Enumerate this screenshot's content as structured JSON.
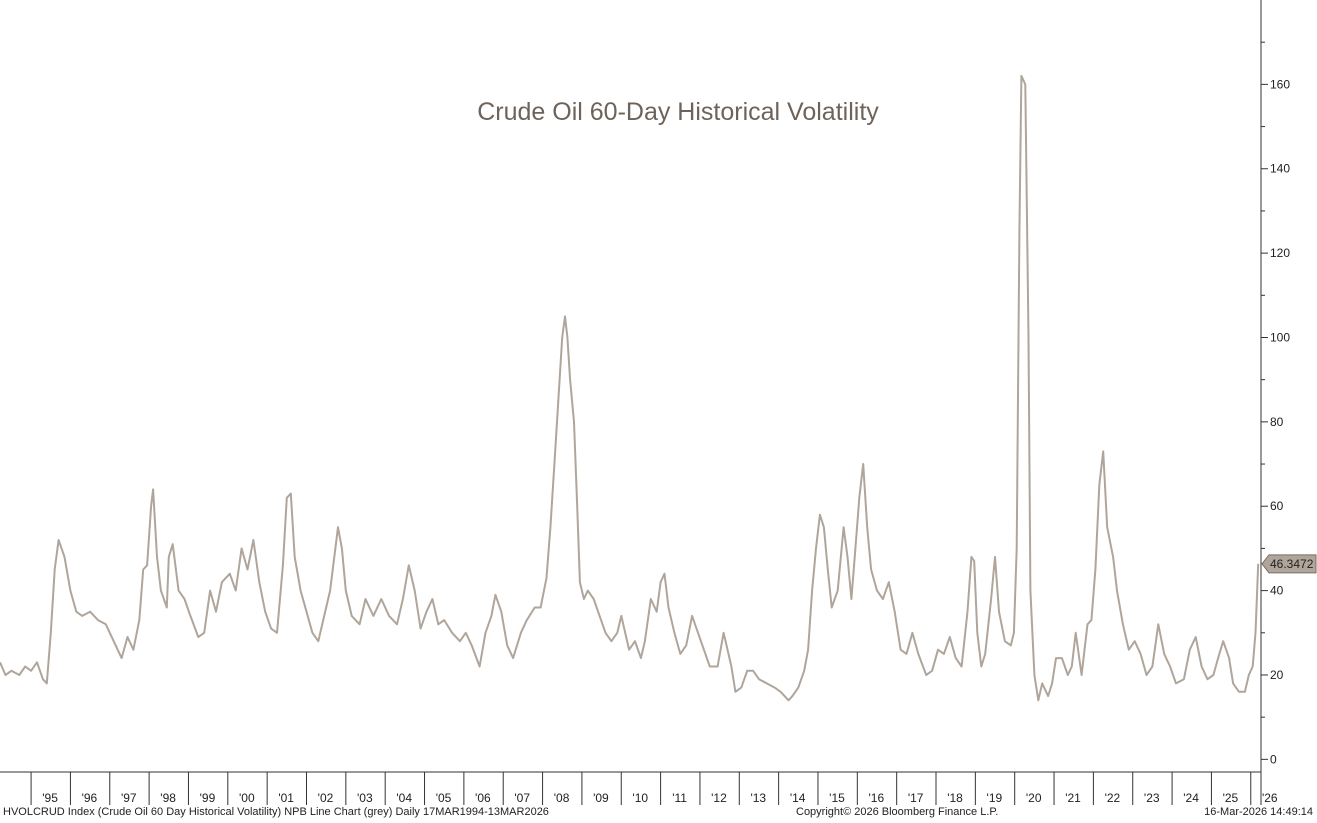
{
  "chart_data": {
    "type": "line",
    "title": "Crude Oil 60-Day Historical Volatility",
    "xlabel": "",
    "ylabel": "",
    "ylim": [
      -3,
      180
    ],
    "xlim": [
      1994.21,
      2026.26
    ],
    "y_ticks": [
      0,
      20,
      40,
      60,
      80,
      100,
      120,
      140,
      160
    ],
    "x_ticks": [
      {
        "label": "'95",
        "year": 1995
      },
      {
        "label": "'96",
        "year": 1996
      },
      {
        "label": "'97",
        "year": 1997
      },
      {
        "label": "'98",
        "year": 1998
      },
      {
        "label": "'99",
        "year": 1999
      },
      {
        "label": "'00",
        "year": 2000
      },
      {
        "label": "'01",
        "year": 2001
      },
      {
        "label": "'02",
        "year": 2002
      },
      {
        "label": "'03",
        "year": 2003
      },
      {
        "label": "'04",
        "year": 2004
      },
      {
        "label": "'05",
        "year": 2005
      },
      {
        "label": "'06",
        "year": 2006
      },
      {
        "label": "'07",
        "year": 2007
      },
      {
        "label": "'08",
        "year": 2008
      },
      {
        "label": "'09",
        "year": 2009
      },
      {
        "label": "'10",
        "year": 2010
      },
      {
        "label": "'11",
        "year": 2011
      },
      {
        "label": "'12",
        "year": 2012
      },
      {
        "label": "'13",
        "year": 2013
      },
      {
        "label": "'14",
        "year": 2014
      },
      {
        "label": "'15",
        "year": 2015
      },
      {
        "label": "'16",
        "year": 2016
      },
      {
        "label": "'17",
        "year": 2017
      },
      {
        "label": "'18",
        "year": 2018
      },
      {
        "label": "'19",
        "year": 2019
      },
      {
        "label": "'20",
        "year": 2020
      },
      {
        "label": "'21",
        "year": 2021
      },
      {
        "label": "'22",
        "year": 2022
      },
      {
        "label": "'23",
        "year": 2023
      },
      {
        "label": "'24",
        "year": 2024
      },
      {
        "label": "'25",
        "year": 2025
      },
      {
        "label": "'26",
        "year": 2026
      }
    ],
    "grid": false,
    "series": [
      {
        "color": "#b0a59a",
        "points": [
          [
            1994.21,
            23
          ],
          [
            1994.35,
            20
          ],
          [
            1994.5,
            21
          ],
          [
            1994.7,
            20
          ],
          [
            1994.85,
            22
          ],
          [
            1995.0,
            21
          ],
          [
            1995.15,
            23
          ],
          [
            1995.3,
            19
          ],
          [
            1995.4,
            18
          ],
          [
            1995.5,
            30
          ],
          [
            1995.6,
            45
          ],
          [
            1995.7,
            52
          ],
          [
            1995.85,
            48
          ],
          [
            1996.0,
            40
          ],
          [
            1996.15,
            35
          ],
          [
            1996.3,
            34
          ],
          [
            1996.5,
            35
          ],
          [
            1996.7,
            33
          ],
          [
            1996.9,
            32
          ],
          [
            1997.1,
            28
          ],
          [
            1997.3,
            24
          ],
          [
            1997.45,
            29
          ],
          [
            1997.6,
            26
          ],
          [
            1997.75,
            33
          ],
          [
            1997.85,
            45
          ],
          [
            1997.95,
            46
          ],
          [
            1998.05,
            60
          ],
          [
            1998.1,
            64
          ],
          [
            1998.2,
            48
          ],
          [
            1998.3,
            40
          ],
          [
            1998.45,
            36
          ],
          [
            1998.5,
            48
          ],
          [
            1998.6,
            51
          ],
          [
            1998.75,
            40
          ],
          [
            1998.9,
            38
          ],
          [
            1999.05,
            34
          ],
          [
            1999.25,
            29
          ],
          [
            1999.4,
            30
          ],
          [
            1999.55,
            40
          ],
          [
            1999.7,
            35
          ],
          [
            1999.85,
            42
          ],
          [
            2000.05,
            44
          ],
          [
            2000.2,
            40
          ],
          [
            2000.35,
            50
          ],
          [
            2000.5,
            45
          ],
          [
            2000.65,
            52
          ],
          [
            2000.8,
            42
          ],
          [
            2000.95,
            35
          ],
          [
            2001.1,
            31
          ],
          [
            2001.25,
            30
          ],
          [
            2001.4,
            46
          ],
          [
            2001.5,
            62
          ],
          [
            2001.6,
            63
          ],
          [
            2001.7,
            48
          ],
          [
            2001.85,
            40
          ],
          [
            2002.0,
            35
          ],
          [
            2002.15,
            30
          ],
          [
            2002.3,
            28
          ],
          [
            2002.45,
            34
          ],
          [
            2002.6,
            40
          ],
          [
            2002.8,
            55
          ],
          [
            2002.9,
            50
          ],
          [
            2003.0,
            40
          ],
          [
            2003.15,
            34
          ],
          [
            2003.35,
            32
          ],
          [
            2003.5,
            38
          ],
          [
            2003.7,
            34
          ],
          [
            2003.9,
            38
          ],
          [
            2004.1,
            34
          ],
          [
            2004.3,
            32
          ],
          [
            2004.45,
            38
          ],
          [
            2004.6,
            46
          ],
          [
            2004.75,
            40
          ],
          [
            2004.9,
            31
          ],
          [
            2005.05,
            35
          ],
          [
            2005.2,
            38
          ],
          [
            2005.35,
            32
          ],
          [
            2005.5,
            33
          ],
          [
            2005.7,
            30
          ],
          [
            2005.9,
            28
          ],
          [
            2006.05,
            30
          ],
          [
            2006.2,
            27
          ],
          [
            2006.4,
            22
          ],
          [
            2006.55,
            30
          ],
          [
            2006.7,
            34
          ],
          [
            2006.8,
            39
          ],
          [
            2006.95,
            35
          ],
          [
            2007.1,
            27
          ],
          [
            2007.25,
            24
          ],
          [
            2007.45,
            30
          ],
          [
            2007.6,
            33
          ],
          [
            2007.8,
            36
          ],
          [
            2007.95,
            36
          ],
          [
            2008.1,
            43
          ],
          [
            2008.2,
            55
          ],
          [
            2008.3,
            70
          ],
          [
            2008.4,
            85
          ],
          [
            2008.5,
            100
          ],
          [
            2008.57,
            105
          ],
          [
            2008.63,
            100
          ],
          [
            2008.7,
            90
          ],
          [
            2008.8,
            80
          ],
          [
            2008.88,
            60
          ],
          [
            2008.95,
            42
          ],
          [
            2009.05,
            38
          ],
          [
            2009.15,
            40
          ],
          [
            2009.3,
            38
          ],
          [
            2009.45,
            34
          ],
          [
            2009.6,
            30
          ],
          [
            2009.75,
            28
          ],
          [
            2009.9,
            30
          ],
          [
            2010.0,
            34
          ],
          [
            2010.1,
            30
          ],
          [
            2010.2,
            26
          ],
          [
            2010.35,
            28
          ],
          [
            2010.5,
            24
          ],
          [
            2010.6,
            28
          ],
          [
            2010.75,
            38
          ],
          [
            2010.9,
            35
          ],
          [
            2011.0,
            42
          ],
          [
            2011.1,
            44
          ],
          [
            2011.2,
            36
          ],
          [
            2011.35,
            30
          ],
          [
            2011.5,
            25
          ],
          [
            2011.65,
            27
          ],
          [
            2011.8,
            34
          ],
          [
            2011.95,
            30
          ],
          [
            2012.1,
            26
          ],
          [
            2012.25,
            22
          ],
          [
            2012.45,
            22
          ],
          [
            2012.6,
            30
          ],
          [
            2012.8,
            22
          ],
          [
            2012.9,
            16
          ],
          [
            2013.05,
            17
          ],
          [
            2013.2,
            21
          ],
          [
            2013.35,
            21
          ],
          [
            2013.5,
            19
          ],
          [
            2013.7,
            18
          ],
          [
            2013.9,
            17
          ],
          [
            2014.05,
            16
          ],
          [
            2014.25,
            14
          ],
          [
            2014.35,
            15
          ],
          [
            2014.5,
            17
          ],
          [
            2014.65,
            21
          ],
          [
            2014.75,
            26
          ],
          [
            2014.85,
            40
          ],
          [
            2014.95,
            50
          ],
          [
            2015.05,
            58
          ],
          [
            2015.15,
            55
          ],
          [
            2015.25,
            45
          ],
          [
            2015.35,
            36
          ],
          [
            2015.5,
            40
          ],
          [
            2015.65,
            55
          ],
          [
            2015.75,
            48
          ],
          [
            2015.85,
            38
          ],
          [
            2015.95,
            50
          ],
          [
            2016.05,
            62
          ],
          [
            2016.15,
            70
          ],
          [
            2016.25,
            55
          ],
          [
            2016.35,
            45
          ],
          [
            2016.5,
            40
          ],
          [
            2016.65,
            38
          ],
          [
            2016.8,
            42
          ],
          [
            2016.95,
            35
          ],
          [
            2017.1,
            26
          ],
          [
            2017.25,
            25
          ],
          [
            2017.4,
            30
          ],
          [
            2017.55,
            25
          ],
          [
            2017.75,
            20
          ],
          [
            2017.9,
            21
          ],
          [
            2018.05,
            26
          ],
          [
            2018.2,
            25
          ],
          [
            2018.35,
            29
          ],
          [
            2018.5,
            24
          ],
          [
            2018.65,
            22
          ],
          [
            2018.8,
            35
          ],
          [
            2018.9,
            48
          ],
          [
            2018.97,
            47
          ],
          [
            2019.05,
            30
          ],
          [
            2019.15,
            22
          ],
          [
            2019.25,
            25
          ],
          [
            2019.4,
            38
          ],
          [
            2019.5,
            48
          ],
          [
            2019.6,
            35
          ],
          [
            2019.75,
            28
          ],
          [
            2019.9,
            27
          ],
          [
            2019.98,
            30
          ],
          [
            2020.05,
            50
          ],
          [
            2020.12,
            125
          ],
          [
            2020.17,
            162
          ],
          [
            2020.27,
            160
          ],
          [
            2020.35,
            100
          ],
          [
            2020.4,
            40
          ],
          [
            2020.5,
            20
          ],
          [
            2020.6,
            14
          ],
          [
            2020.7,
            18
          ],
          [
            2020.85,
            15
          ],
          [
            2020.95,
            18
          ],
          [
            2021.05,
            24
          ],
          [
            2021.2,
            24
          ],
          [
            2021.35,
            20
          ],
          [
            2021.45,
            22
          ],
          [
            2021.55,
            30
          ],
          [
            2021.7,
            20
          ],
          [
            2021.85,
            32
          ],
          [
            2021.95,
            33
          ],
          [
            2022.05,
            45
          ],
          [
            2022.15,
            65
          ],
          [
            2022.25,
            73
          ],
          [
            2022.35,
            55
          ],
          [
            2022.5,
            48
          ],
          [
            2022.6,
            40
          ],
          [
            2022.75,
            32
          ],
          [
            2022.9,
            26
          ],
          [
            2023.05,
            28
          ],
          [
            2023.2,
            25
          ],
          [
            2023.35,
            20
          ],
          [
            2023.5,
            22
          ],
          [
            2023.65,
            32
          ],
          [
            2023.8,
            25
          ],
          [
            2023.95,
            22
          ],
          [
            2024.1,
            18
          ],
          [
            2024.3,
            19
          ],
          [
            2024.45,
            26
          ],
          [
            2024.6,
            29
          ],
          [
            2024.75,
            22
          ],
          [
            2024.9,
            19
          ],
          [
            2025.05,
            20
          ],
          [
            2025.2,
            25
          ],
          [
            2025.3,
            28
          ],
          [
            2025.45,
            24
          ],
          [
            2025.55,
            18
          ],
          [
            2025.7,
            16
          ],
          [
            2025.85,
            16
          ],
          [
            2025.95,
            20
          ],
          [
            2026.05,
            22
          ],
          [
            2026.12,
            30
          ],
          [
            2026.19,
            46.3472
          ]
        ]
      }
    ],
    "last_value_label": "46.3472"
  },
  "footer": {
    "left": "HVOLCRUD Index (Crude Oil 60 Day Historical Volatility) NPB Line Chart (grey) Daily 17MAR1994-13MAR2026",
    "center": "Copyright© 2026 Bloomberg Finance L.P.",
    "right": "16-Mar-2026 14:49:14"
  }
}
